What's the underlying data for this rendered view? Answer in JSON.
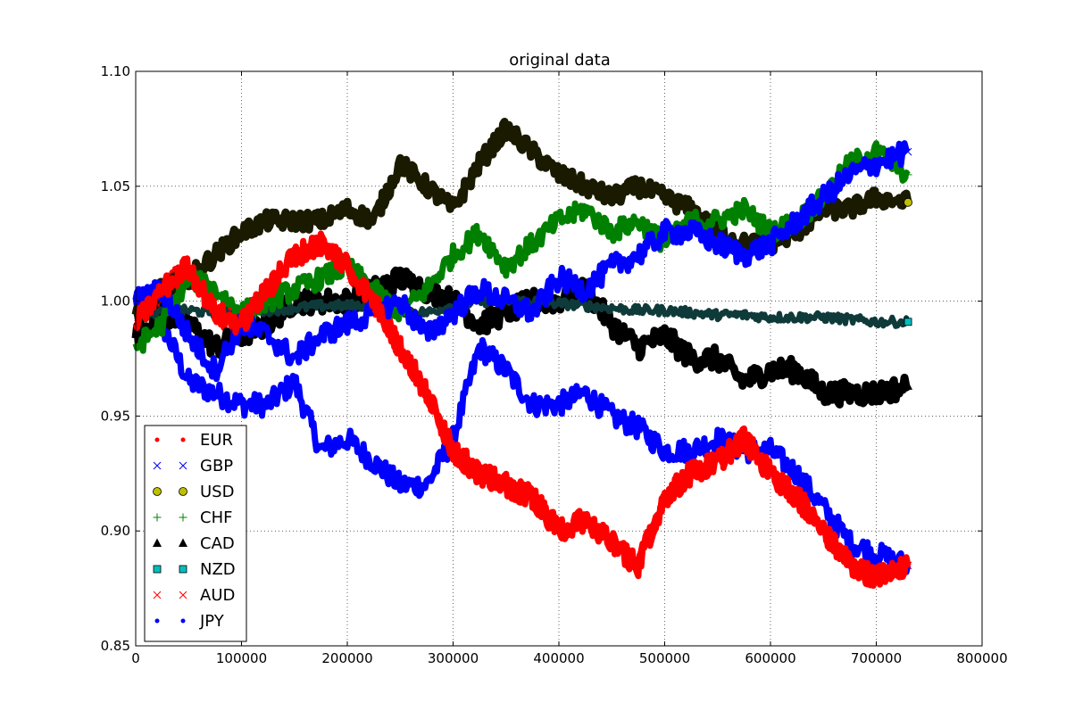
{
  "chart_data": {
    "type": "line",
    "title": "original data",
    "xlabel": "",
    "ylabel": "",
    "xlim": [
      0,
      800000
    ],
    "ylim": [
      0.85,
      1.1
    ],
    "x_ticks": [
      "0",
      "100000",
      "200000",
      "300000",
      "400000",
      "500000",
      "600000",
      "700000",
      "800000"
    ],
    "x_tick_values": [
      0,
      100000,
      200000,
      300000,
      400000,
      500000,
      600000,
      700000,
      800000
    ],
    "y_ticks": [
      "0.85",
      "0.90",
      "0.95",
      "1.00",
      "1.05",
      "1.10"
    ],
    "y_tick_values": [
      0.85,
      0.9,
      0.95,
      1.0,
      1.05,
      1.1
    ],
    "grid": true,
    "legend_position": "lower-left",
    "x": [
      0,
      25000,
      50000,
      75000,
      100000,
      125000,
      150000,
      175000,
      200000,
      225000,
      250000,
      275000,
      300000,
      325000,
      350000,
      375000,
      400000,
      425000,
      450000,
      475000,
      500000,
      525000,
      550000,
      575000,
      600000,
      625000,
      650000,
      675000,
      700000,
      730000
    ],
    "series": [
      {
        "name": "EUR",
        "color": "#ff0000",
        "marker": "dot",
        "values": [
          0.99,
          1.005,
          1.015,
          0.995,
          0.99,
          1.005,
          1.02,
          1.025,
          1.015,
          1.0,
          0.98,
          0.96,
          0.935,
          0.925,
          0.92,
          0.915,
          0.9,
          0.905,
          0.895,
          0.885,
          0.915,
          0.925,
          0.93,
          0.94,
          0.925,
          0.915,
          0.9,
          0.885,
          0.88,
          0.885
        ]
      },
      {
        "name": "GBP",
        "color": "#0000ff",
        "marker": "x",
        "values": [
          1.0,
          1.005,
          0.985,
          0.97,
          0.99,
          0.985,
          0.975,
          0.985,
          0.99,
          0.995,
          1.0,
          0.985,
          0.995,
          1.005,
          1.0,
          0.995,
          1.01,
          1.005,
          1.015,
          1.02,
          1.03,
          1.03,
          1.025,
          1.02,
          1.025,
          1.035,
          1.045,
          1.055,
          1.06,
          1.065
        ]
      },
      {
        "name": "USD",
        "color": "#bfbf00",
        "marker": "circle",
        "values": [
          0.995,
          1.005,
          1.01,
          1.02,
          1.03,
          1.035,
          1.035,
          1.035,
          1.04,
          1.035,
          1.06,
          1.05,
          1.04,
          1.06,
          1.075,
          1.065,
          1.055,
          1.05,
          1.045,
          1.05,
          1.045,
          1.04,
          1.03,
          1.025,
          1.025,
          1.03,
          1.04,
          1.04,
          1.045,
          1.043
        ]
      },
      {
        "name": "CHF",
        "color": "#008000",
        "marker": "plus",
        "values": [
          0.98,
          0.99,
          1.01,
          1.005,
          0.995,
          1.0,
          1.005,
          1.01,
          1.015,
          1.005,
          0.995,
          1.005,
          1.02,
          1.03,
          1.015,
          1.025,
          1.035,
          1.04,
          1.03,
          1.035,
          1.025,
          1.035,
          1.035,
          1.04,
          1.03,
          1.035,
          1.045,
          1.06,
          1.065,
          1.055
        ]
      },
      {
        "name": "CAD",
        "color": "#000000",
        "marker": "triangle",
        "values": [
          0.985,
          0.995,
          0.99,
          0.98,
          0.985,
          0.99,
          1.0,
          1.0,
          1.0,
          1.005,
          1.01,
          1.005,
          1.0,
          0.99,
          0.995,
          1.0,
          1.0,
          1.005,
          0.99,
          0.98,
          0.985,
          0.975,
          0.975,
          0.965,
          0.97,
          0.97,
          0.96,
          0.96,
          0.96,
          0.963
        ]
      },
      {
        "name": "NZD",
        "color": "#00bfbf",
        "marker": "square",
        "values": [
          0.995,
          0.995,
          0.996,
          0.995,
          0.995,
          0.996,
          0.997,
          0.998,
          0.998,
          0.998,
          0.996,
          0.995,
          0.998,
          1.0,
          1.0,
          1.0,
          0.999,
          0.998,
          0.997,
          0.996,
          0.996,
          0.995,
          0.994,
          0.994,
          0.993,
          0.993,
          0.993,
          0.992,
          0.991,
          0.991
        ]
      },
      {
        "name": "AUD",
        "color": "#ff0000",
        "marker": "x",
        "values": [
          0.99,
          1.005,
          1.015,
          0.995,
          0.99,
          1.005,
          1.02,
          1.025,
          1.015,
          1.0,
          0.98,
          0.96,
          0.935,
          0.925,
          0.92,
          0.915,
          0.9,
          0.905,
          0.895,
          0.885,
          0.915,
          0.925,
          0.93,
          0.94,
          0.925,
          0.915,
          0.9,
          0.885,
          0.88,
          0.885
        ]
      },
      {
        "name": "JPY",
        "color": "#0000ff",
        "marker": "dot",
        "values": [
          1.0,
          0.99,
          0.965,
          0.96,
          0.955,
          0.955,
          0.965,
          0.935,
          0.94,
          0.93,
          0.92,
          0.92,
          0.94,
          0.98,
          0.97,
          0.955,
          0.955,
          0.96,
          0.95,
          0.945,
          0.935,
          0.935,
          0.94,
          0.935,
          0.935,
          0.925,
          0.91,
          0.895,
          0.89,
          0.885
        ]
      }
    ]
  }
}
